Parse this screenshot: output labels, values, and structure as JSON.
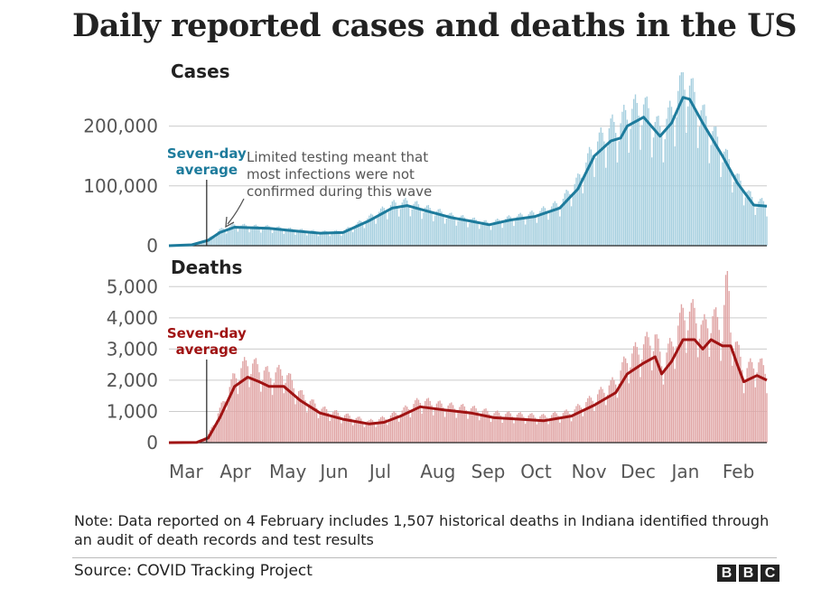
{
  "title": "Daily reported cases and deaths in the US",
  "note": "Note: Data reported on 4 February includes 1,507 historical deaths in Indiana identified through an audit of death records and test results",
  "source": "Source: COVID Tracking Project",
  "logo_letters": [
    "B",
    "B",
    "C"
  ],
  "colors": {
    "cases_line": "#1d7b9c",
    "cases_bar": "#a6cfdf",
    "deaths_line": "#a01313",
    "deaths_bar": "#e0a5a5",
    "grid": "#cccccc"
  },
  "chart_data": [
    {
      "type": "bar",
      "title": "Cases",
      "x_axis": {
        "type": "date",
        "range": [
          "2020-03-01",
          "2021-02-28"
        ],
        "tick_labels": [
          "Mar",
          "Apr",
          "May",
          "Jun",
          "Jul",
          "Aug",
          "Sep",
          "Oct",
          "Nov",
          "Dec",
          "Jan",
          "Feb"
        ]
      },
      "y_axis": {
        "range": [
          0,
          290000
        ],
        "ticks": [
          0,
          100000,
          200000
        ],
        "tick_labels": [
          "0",
          "100,000",
          "200,000"
        ]
      },
      "grid": true,
      "series": [
        {
          "name": "Seven-day average",
          "role": "line",
          "points": [
            [
              "2020-03-01",
              0
            ],
            [
              "2020-03-15",
              1500
            ],
            [
              "2020-03-25",
              9000
            ],
            [
              "2020-04-01",
              22000
            ],
            [
              "2020-04-10",
              31000
            ],
            [
              "2020-04-20",
              30000
            ],
            [
              "2020-05-01",
              29000
            ],
            [
              "2020-05-15",
              25000
            ],
            [
              "2020-06-01",
              21000
            ],
            [
              "2020-06-15",
              22000
            ],
            [
              "2020-07-01",
              42000
            ],
            [
              "2020-07-15",
              63000
            ],
            [
              "2020-07-24",
              67000
            ],
            [
              "2020-08-05",
              58000
            ],
            [
              "2020-08-20",
              47000
            ],
            [
              "2020-09-01",
              41000
            ],
            [
              "2020-09-12",
              35000
            ],
            [
              "2020-09-25",
              43000
            ],
            [
              "2020-10-10",
              49000
            ],
            [
              "2020-10-25",
              63000
            ],
            [
              "2020-11-05",
              95000
            ],
            [
              "2020-11-15",
              150000
            ],
            [
              "2020-11-25",
              175000
            ],
            [
              "2020-12-01",
              180000
            ],
            [
              "2020-12-05",
              200000
            ],
            [
              "2020-12-15",
              215000
            ],
            [
              "2020-12-25",
              183000
            ],
            [
              "2021-01-01",
              205000
            ],
            [
              "2021-01-08",
              248000
            ],
            [
              "2021-01-12",
              245000
            ],
            [
              "2021-01-20",
              205000
            ],
            [
              "2021-02-01",
              150000
            ],
            [
              "2021-02-10",
              105000
            ],
            [
              "2021-02-20",
              68000
            ],
            [
              "2021-02-28",
              66000
            ]
          ]
        },
        {
          "name": "Daily reported",
          "role": "bar",
          "points": [
            [
              "2020-03-01",
              0
            ],
            [
              "2020-03-15",
              2000
            ],
            [
              "2020-03-25",
              11000
            ],
            [
              "2020-04-01",
              25000
            ],
            [
              "2020-04-10",
              33000
            ],
            [
              "2020-04-20",
              31000
            ],
            [
              "2020-05-01",
              30000
            ],
            [
              "2020-05-15",
              26000
            ],
            [
              "2020-06-01",
              22000
            ],
            [
              "2020-06-15",
              23000
            ],
            [
              "2020-07-01",
              45000
            ],
            [
              "2020-07-15",
              66000
            ],
            [
              "2020-07-24",
              70000
            ],
            [
              "2020-08-05",
              60000
            ],
            [
              "2020-08-20",
              48000
            ],
            [
              "2020-09-01",
              42000
            ],
            [
              "2020-09-12",
              36000
            ],
            [
              "2020-09-25",
              45000
            ],
            [
              "2020-10-10",
              52000
            ],
            [
              "2020-10-25",
              68000
            ],
            [
              "2020-11-05",
              105000
            ],
            [
              "2020-11-15",
              160000
            ],
            [
              "2020-11-25",
              190000
            ],
            [
              "2020-12-01",
              195000
            ],
            [
              "2020-12-05",
              215000
            ],
            [
              "2020-12-15",
              225000
            ],
            [
              "2020-12-25",
              185000
            ],
            [
              "2021-01-01",
              215000
            ],
            [
              "2021-01-08",
              270000
            ],
            [
              "2021-01-12",
              255000
            ],
            [
              "2021-01-20",
              210000
            ],
            [
              "2021-02-01",
              155000
            ],
            [
              "2021-02-10",
              108000
            ],
            [
              "2021-02-20",
              72000
            ],
            [
              "2021-02-28",
              68000
            ]
          ]
        }
      ],
      "annotations": [
        {
          "text": [
            "Seven-day",
            "average"
          ],
          "x": "2020-03-24"
        },
        {
          "text": [
            "Limited testing meant that",
            "most infections were not",
            "confirmed during this wave"
          ],
          "x": "2020-04-06"
        }
      ]
    },
    {
      "type": "bar",
      "title": "Deaths",
      "x_axis": {
        "type": "date",
        "range": [
          "2020-03-01",
          "2021-02-28"
        ],
        "tick_labels": [
          "Mar",
          "Apr",
          "May",
          "Jun",
          "Jul",
          "Aug",
          "Sep",
          "Oct",
          "Nov",
          "Dec",
          "Jan",
          "Feb"
        ]
      },
      "y_axis": {
        "range": [
          0,
          5500
        ],
        "ticks": [
          0,
          1000,
          2000,
          3000,
          4000,
          5000
        ],
        "tick_labels": [
          "0",
          "1,000",
          "2,000",
          "3,000",
          "4,000",
          "5,000"
        ]
      },
      "grid": true,
      "series": [
        {
          "name": "Seven-day average",
          "role": "line",
          "points": [
            [
              "2020-03-01",
              0
            ],
            [
              "2020-03-18",
              10
            ],
            [
              "2020-03-25",
              150
            ],
            [
              "2020-04-01",
              800
            ],
            [
              "2020-04-10",
              1800
            ],
            [
              "2020-04-18",
              2100
            ],
            [
              "2020-04-25",
              1950
            ],
            [
              "2020-05-01",
              1800
            ],
            [
              "2020-05-10",
              1800
            ],
            [
              "2020-05-20",
              1350
            ],
            [
              "2020-06-01",
              950
            ],
            [
              "2020-06-15",
              750
            ],
            [
              "2020-07-01",
              600
            ],
            [
              "2020-07-10",
              650
            ],
            [
              "2020-07-20",
              850
            ],
            [
              "2020-08-01",
              1150
            ],
            [
              "2020-08-15",
              1050
            ],
            [
              "2020-09-01",
              950
            ],
            [
              "2020-09-15",
              800
            ],
            [
              "2020-10-01",
              750
            ],
            [
              "2020-10-15",
              700
            ],
            [
              "2020-11-01",
              850
            ],
            [
              "2020-11-15",
              1200
            ],
            [
              "2020-11-28",
              1600
            ],
            [
              "2020-12-05",
              2200
            ],
            [
              "2020-12-15",
              2550
            ],
            [
              "2020-12-22",
              2750
            ],
            [
              "2020-12-26",
              2200
            ],
            [
              "2021-01-01",
              2600
            ],
            [
              "2021-01-08",
              3300
            ],
            [
              "2021-01-15",
              3300
            ],
            [
              "2021-01-20",
              3000
            ],
            [
              "2021-01-25",
              3300
            ],
            [
              "2021-02-01",
              3100
            ],
            [
              "2021-02-06",
              3100
            ],
            [
              "2021-02-10",
              2500
            ],
            [
              "2021-02-14",
              1950
            ],
            [
              "2021-02-22",
              2150
            ],
            [
              "2021-02-28",
              2000
            ]
          ]
        },
        {
          "name": "Daily reported",
          "role": "bar",
          "points": [
            [
              "2020-03-01",
              0
            ],
            [
              "2020-03-18",
              20
            ],
            [
              "2020-03-25",
              250
            ],
            [
              "2020-04-01",
              1000
            ],
            [
              "2020-04-10",
              2050
            ],
            [
              "2020-04-18",
              2500
            ],
            [
              "2020-04-25",
              2300
            ],
            [
              "2020-05-01",
              2100
            ],
            [
              "2020-05-10",
              2200
            ],
            [
              "2020-05-20",
              1500
            ],
            [
              "2020-06-01",
              1050
            ],
            [
              "2020-06-15",
              850
            ],
            [
              "2020-07-01",
              650
            ],
            [
              "2020-07-10",
              750
            ],
            [
              "2020-07-20",
              950
            ],
            [
              "2020-08-01",
              1300
            ],
            [
              "2020-08-15",
              1150
            ],
            [
              "2020-09-01",
              1050
            ],
            [
              "2020-09-15",
              900
            ],
            [
              "2020-10-01",
              850
            ],
            [
              "2020-10-15",
              800
            ],
            [
              "2020-11-01",
              950
            ],
            [
              "2020-11-15",
              1400
            ],
            [
              "2020-11-28",
              1900
            ],
            [
              "2020-12-05",
              2600
            ],
            [
              "2020-12-15",
              3000
            ],
            [
              "2020-12-22",
              3300
            ],
            [
              "2020-12-26",
              2500
            ],
            [
              "2021-01-01",
              3000
            ],
            [
              "2021-01-08",
              4000
            ],
            [
              "2021-01-15",
              4000
            ],
            [
              "2021-01-20",
              3500
            ],
            [
              "2021-01-25",
              3900
            ],
            [
              "2021-02-01",
              3600
            ],
            [
              "2021-02-04",
              5400
            ],
            [
              "2021-02-06",
              3600
            ],
            [
              "2021-02-10",
              2900
            ],
            [
              "2021-02-14",
              2200
            ],
            [
              "2021-02-22",
              2500
            ],
            [
              "2021-02-28",
              2200
            ]
          ]
        }
      ],
      "annotations": [
        {
          "text": [
            "Seven-day",
            "average"
          ],
          "x": "2020-03-24"
        }
      ]
    }
  ]
}
